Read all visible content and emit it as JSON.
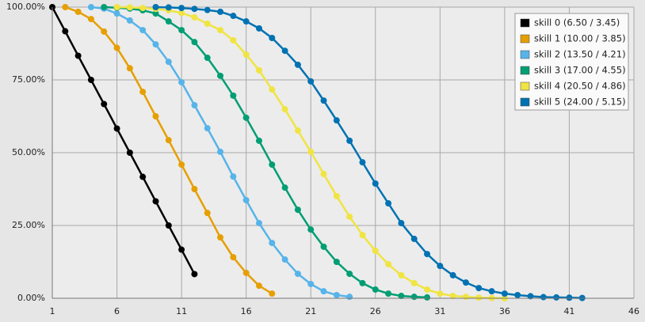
{
  "chart_data": {
    "type": "line",
    "xlim": [
      1,
      46
    ],
    "xticks": [
      1,
      6,
      11,
      16,
      21,
      26,
      31,
      36,
      41,
      46
    ],
    "ylim": [
      0,
      100
    ],
    "yticks": [
      {
        "value": 0,
        "label": "0.00%"
      },
      {
        "value": 25,
        "label": "25.00%"
      },
      {
        "value": 50,
        "label": "50.00%"
      },
      {
        "value": 75,
        "label": "75.00%"
      },
      {
        "value": 100,
        "label": "100.00%"
      }
    ],
    "grid": true,
    "legend": "upper right",
    "series": [
      {
        "name": "skill 0 (6.50 / 3.45)",
        "color": "#000000",
        "x": [
          1,
          2,
          3,
          4,
          5,
          6,
          7,
          8,
          9,
          10,
          11,
          12
        ],
        "values": [
          100,
          91.7,
          83.3,
          75,
          66.7,
          58.3,
          50,
          41.7,
          33.3,
          25,
          16.7,
          8.3
        ]
      },
      {
        "name": "skill 1 (10.00 / 3.85)",
        "color": "#e69f00",
        "x": [
          2,
          3,
          4,
          5,
          6,
          7,
          8,
          9,
          10,
          11,
          12,
          13,
          14,
          15,
          16,
          17,
          18
        ],
        "values": [
          100,
          98.4,
          95.9,
          91.6,
          86,
          79,
          70.9,
          62.5,
          54.3,
          45.9,
          37.5,
          29.3,
          20.9,
          14.1,
          8.7,
          4.3,
          1.6
        ]
      },
      {
        "name": "skill 2 (13.50 / 4.21)",
        "color": "#56b4e9",
        "x": [
          4,
          5,
          6,
          7,
          8,
          9,
          10,
          11,
          12,
          13,
          14,
          15,
          16,
          17,
          18,
          19,
          20,
          21,
          22,
          23,
          24
        ],
        "values": [
          100,
          99.5,
          97.8,
          95.4,
          92.1,
          87.2,
          81.2,
          74.2,
          66.3,
          58.4,
          50.3,
          41.8,
          33.7,
          25.8,
          19,
          13.3,
          8.4,
          4.9,
          2.4,
          1.1,
          0.5
        ]
      },
      {
        "name": "skill 3 (17.00 / 4.55)",
        "color": "#009e73",
        "x": [
          5,
          6,
          7,
          8,
          9,
          10,
          11,
          12,
          13,
          14,
          15,
          16,
          17,
          18,
          19,
          20,
          21,
          22,
          23,
          24,
          25,
          26,
          27,
          28,
          29,
          30
        ],
        "values": [
          100,
          99.8,
          99.5,
          98.9,
          97.8,
          95.1,
          92.1,
          88,
          82.6,
          76.4,
          69.6,
          62,
          54.1,
          45.9,
          38,
          30.4,
          23.6,
          17.7,
          12.5,
          8.4,
          5.2,
          3,
          1.6,
          0.8,
          0.5,
          0.3
        ]
      },
      {
        "name": "skill 4 (20.50 / 4.86)",
        "color": "#f0e442",
        "x": [
          6,
          7,
          8,
          9,
          10,
          11,
          12,
          13,
          14,
          15,
          16,
          17,
          18,
          19,
          20,
          21,
          22,
          23,
          24,
          25,
          26,
          27,
          28,
          29,
          30,
          31,
          32,
          33,
          34,
          35,
          36
        ],
        "values": [
          100,
          99.9,
          99.7,
          99.4,
          98.9,
          98,
          96.5,
          94.3,
          92.1,
          88.6,
          83.7,
          78.3,
          71.7,
          64.9,
          57.6,
          50.3,
          42.7,
          35.1,
          28,
          21.7,
          16.3,
          11.7,
          7.9,
          5.2,
          3,
          1.6,
          0.8,
          0.5,
          0.2,
          0.1,
          0
        ]
      },
      {
        "name": "skill 5 (24.00 / 5.15)",
        "color": "#0072b2",
        "x": [
          9,
          10,
          11,
          12,
          13,
          14,
          15,
          16,
          17,
          18,
          19,
          20,
          21,
          22,
          23,
          24,
          25,
          26,
          27,
          28,
          29,
          30,
          31,
          32,
          33,
          34,
          35,
          36,
          37,
          38,
          39,
          40,
          41,
          42
        ],
        "values": [
          100,
          99.9,
          99.7,
          99.4,
          99,
          98.4,
          97,
          95.1,
          92.7,
          89.4,
          85,
          80.2,
          74.5,
          67.9,
          61.1,
          54.1,
          46.7,
          39.4,
          32.6,
          25.8,
          20.4,
          15.2,
          11.1,
          7.9,
          5.4,
          3.5,
          2.4,
          1.6,
          1.1,
          0.7,
          0.4,
          0.3,
          0.2,
          0.1
        ]
      }
    ]
  }
}
